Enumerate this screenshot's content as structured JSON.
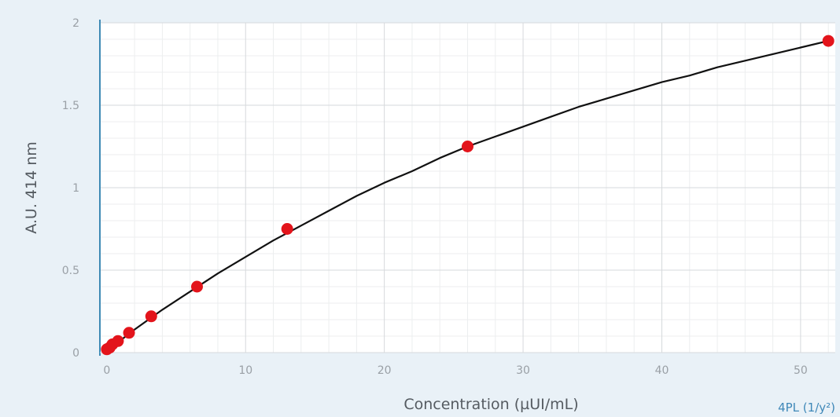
{
  "chart_data": {
    "type": "scatter",
    "title": "",
    "xlabel": "Concentration (µUI/mL)",
    "ylabel": "A.U. 414 nm",
    "fit_label": "4PL (1/y²)",
    "xlim": [
      -0.5,
      52.5
    ],
    "ylim": [
      0,
      2
    ],
    "x_ticks": [
      0,
      10,
      20,
      30,
      40,
      50
    ],
    "y_ticks": [
      0,
      0.5,
      1,
      1.5,
      2
    ],
    "y_tick_labels": [
      "0",
      "0.5",
      "1",
      "1.5",
      "2"
    ],
    "grid": true,
    "points": {
      "x": [
        0,
        0.2,
        0.4,
        0.8,
        1.6,
        3.2,
        6.5,
        13,
        26,
        52
      ],
      "y": [
        0.02,
        0.03,
        0.05,
        0.07,
        0.12,
        0.22,
        0.4,
        0.75,
        1.25,
        1.89
      ]
    },
    "curve": {
      "type": "4PL",
      "x": [
        0,
        2,
        4,
        6,
        8,
        10,
        12,
        14,
        16,
        18,
        20,
        22,
        24,
        26,
        28,
        30,
        32,
        34,
        36,
        38,
        40,
        42,
        44,
        46,
        48,
        50,
        52
      ],
      "y": [
        0.01,
        0.14,
        0.26,
        0.37,
        0.48,
        0.58,
        0.68,
        0.77,
        0.86,
        0.95,
        1.03,
        1.1,
        1.18,
        1.25,
        1.31,
        1.37,
        1.43,
        1.49,
        1.54,
        1.59,
        1.64,
        1.68,
        1.73,
        1.77,
        1.81,
        1.85,
        1.89
      ]
    },
    "colors": {
      "points": "#e3141b",
      "curve": "#111111",
      "axis": "#3e8ab5",
      "grid_major": "#d6d9dc",
      "grid_minor": "#eceeef",
      "plot_background": "#ffffff",
      "page_background": "#e9f1f7"
    }
  }
}
